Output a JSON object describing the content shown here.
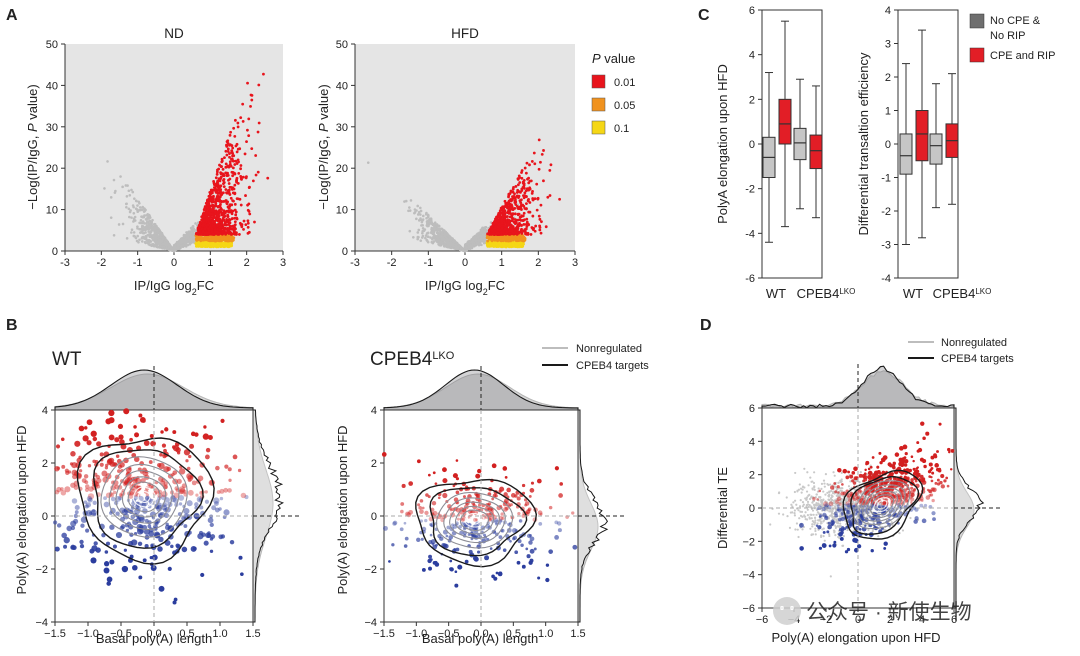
{
  "panel_letters": {
    "a": "A",
    "b": "B",
    "c": "C",
    "d": "D"
  },
  "watermark": "公众号 · 新使生物",
  "colors": {
    "sig001": "#e8141c",
    "sig005": "#f0921e",
    "sig01": "#f5d716",
    "ns": "#bdbdbd",
    "grey_box": "#c6c6c6",
    "red_box": "#e21e26",
    "dark_contour": "#1a1a1a",
    "mid_contour": "#8d8d95",
    "blue_pt": "#2b3d9e",
    "red_pt": "#d42020"
  },
  "volcano_legend": {
    "title_italic": "P",
    "title_rest": " value",
    "items": [
      "0.01",
      "0.05",
      "0.1"
    ]
  },
  "box_legend": {
    "items": [
      [
        "No CPE &",
        "No RIP"
      ],
      [
        "CPE and RIP"
      ]
    ]
  },
  "kde_legend": {
    "items": [
      "Nonregulated",
      "CPEB4 targets"
    ]
  },
  "kde_legend_d": {
    "items": [
      "Nonregulated",
      "CPEB4 targets"
    ]
  },
  "b_titles": {
    "wt": "WT",
    "ko_base": "CPEB4",
    "ko_sup": "LKO"
  },
  "chart_data": [
    {
      "panel": "A",
      "type": "scatter",
      "title": "ND",
      "xlabel_main": "IP/IgG log",
      "xlabel_sub": "2",
      "xlabel_end": "FC",
      "ylabel_pre": "−Log(IP/IgG, ",
      "ylabel_it": "P",
      "ylabel_post": " value)",
      "xlim": [
        -3,
        3
      ],
      "ylim": [
        0,
        50
      ],
      "xticks": [
        "-3",
        "-2",
        "-1",
        "0",
        "1",
        "2",
        "3"
      ],
      "yticks": [
        "0",
        "10",
        "20",
        "30",
        "40",
        "50"
      ],
      "series": [
        {
          "name": "0.01"
        },
        {
          "name": "0.05"
        },
        {
          "name": "0.1"
        }
      ]
    },
    {
      "panel": "A",
      "type": "scatter",
      "title": "HFD",
      "xlabel_main": "IP/IgG log",
      "xlabel_sub": "2",
      "xlabel_end": "FC",
      "ylabel_pre": "−Log(IP/IgG, ",
      "ylabel_it": "P",
      "ylabel_post": " value)",
      "xlim": [
        -3,
        3
      ],
      "ylim": [
        0,
        50
      ],
      "xticks": [
        "-3",
        "-2",
        "-1",
        "0",
        "1",
        "2",
        "3"
      ],
      "yticks": [
        "0",
        "10",
        "20",
        "30",
        "40",
        "50"
      ],
      "series": [
        {
          "name": "0.01"
        },
        {
          "name": "0.05"
        },
        {
          "name": "0.1"
        }
      ]
    },
    {
      "panel": "C",
      "type": "box",
      "ylabel": "PolyA elongation upon HFD",
      "categories": [
        "WT",
        "CPEB4"
      ],
      "cat_sup": [
        "",
        "LKO"
      ],
      "ylim": [
        -6,
        6
      ],
      "yticks": [
        "-6",
        "-4",
        "-2",
        "0",
        "2",
        "4",
        "6"
      ],
      "series": [
        {
          "name": "No CPE & No RIP",
          "boxes": [
            [
              -4.4,
              -1.5,
              -0.6,
              0.3,
              3.2
            ],
            [
              -2.9,
              -0.7,
              0.05,
              0.7,
              2.9
            ]
          ]
        },
        {
          "name": "CPE and RIP",
          "boxes": [
            [
              -3.7,
              0.0,
              0.9,
              2.0,
              5.5
            ],
            [
              -3.3,
              -1.1,
              -0.3,
              0.4,
              2.6
            ]
          ]
        }
      ]
    },
    {
      "panel": "C",
      "type": "box",
      "ylabel": "Differential transaltion efficiency",
      "categories": [
        "WT",
        "CPEB4"
      ],
      "cat_sup": [
        "",
        "LKO"
      ],
      "ylim": [
        -4,
        4
      ],
      "yticks": [
        "-4",
        "-3",
        "-2",
        "-1",
        "0",
        "1",
        "2",
        "3",
        "4"
      ],
      "series": [
        {
          "name": "No CPE & No RIP",
          "boxes": [
            [
              -3.0,
              -0.9,
              -0.35,
              0.3,
              2.4
            ],
            [
              -1.9,
              -0.6,
              -0.05,
              0.3,
              1.8
            ]
          ]
        },
        {
          "name": "CPE and RIP",
          "boxes": [
            [
              -2.8,
              -0.5,
              0.3,
              1.0,
              3.4
            ],
            [
              -1.8,
              -0.4,
              0.1,
              0.6,
              2.1
            ]
          ]
        }
      ]
    },
    {
      "panel": "B",
      "type": "scatter",
      "title": "WT",
      "xlabel": "Basal poly(A) length",
      "ylabel": "Poly(A) elongation upon HFD",
      "xlim": [
        -1.5,
        1.5
      ],
      "ylim": [
        -5,
        5
      ],
      "xticks": [
        "−1.5",
        "−1.0",
        "−0.5",
        "0.0",
        "0.5",
        "1.0",
        "1.5"
      ],
      "yticks": [
        "−4",
        "−2",
        "0",
        "2",
        "4"
      ],
      "series": [
        {
          "name": "Nonregulated"
        },
        {
          "name": "CPEB4 targets"
        }
      ]
    },
    {
      "panel": "B",
      "type": "scatter",
      "title": "CPEB4 LKO",
      "xlabel": "Basal poly(A) length",
      "ylabel": "Poly(A) elongation upon HFD",
      "xlim": [
        -1.5,
        1.5
      ],
      "ylim": [
        -5,
        5
      ],
      "xticks": [
        "−1.5",
        "−1.0",
        "−0.5",
        "0.0",
        "0.5",
        "1.0",
        "1.5"
      ],
      "yticks": [
        "−4",
        "−2",
        "0",
        "2",
        "4"
      ],
      "series": [
        {
          "name": "Nonregulated"
        },
        {
          "name": "CPEB4 targets"
        }
      ]
    },
    {
      "panel": "D",
      "type": "scatter",
      "xlabel": "Poly(A) elongation upon HFD",
      "ylabel": "Differential TE",
      "xlim": [
        -6,
        6
      ],
      "ylim": [
        -6,
        6
      ],
      "xticks": [
        "−6",
        "−4",
        "−2",
        "0",
        "2",
        "4",
        "6"
      ],
      "yticks": [
        "−6",
        "−4",
        "−2",
        "0",
        "2",
        "4",
        "6"
      ],
      "series": [
        {
          "name": "Nonregulated"
        },
        {
          "name": "CPEB4 targets"
        }
      ]
    }
  ]
}
